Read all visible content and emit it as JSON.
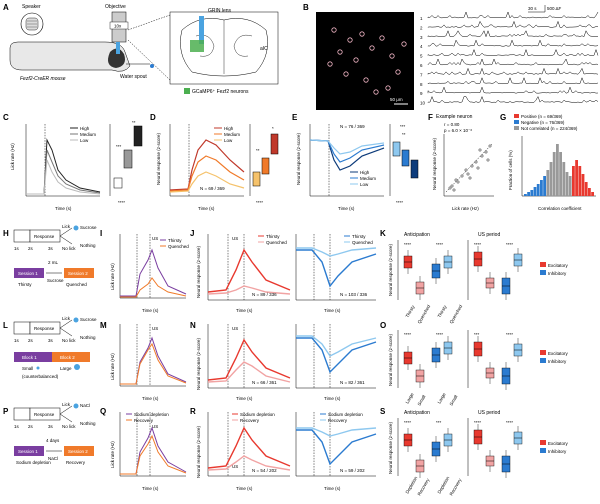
{
  "panels": {
    "A": {
      "letter": "A",
      "speaker": "Speaker",
      "objective": "Objective",
      "objective_mag": "10x",
      "mouse": "Fezf2-CreER mouse",
      "grin": "GRIN lens",
      "aic": "aIC",
      "spout": "Water spout",
      "legend": "GCaMP6⁺ Fezf2 neurons"
    },
    "B": {
      "letter": "B",
      "scale_time": "30 s",
      "scale_df": "500 ΔF",
      "scale_um": "50 μm",
      "trace_ids": [
        "1",
        "2",
        "3",
        "4",
        "5",
        "6",
        "7",
        "8",
        "9",
        "10"
      ]
    },
    "C": {
      "letter": "C",
      "ylabel": "Lick rate (Hz)",
      "xlabel": "Time (s)",
      "legend": [
        "High",
        "Medium",
        "Low"
      ],
      "xticks": [
        "-4",
        "0",
        "4",
        "8",
        "12"
      ],
      "yticks": [
        "0",
        "2",
        "4",
        "6",
        "8"
      ],
      "sig": [
        "**",
        "***",
        "****"
      ]
    },
    "D": {
      "letter": "D",
      "ylabel": "Neural response (z-score)",
      "xlabel": "Time (s)",
      "legend": [
        "High",
        "Medium",
        "Low"
      ],
      "xticks": [
        "-4",
        "0",
        "4",
        "8",
        "12"
      ],
      "yticks": [
        "0",
        "0.4",
        "0.8"
      ],
      "n": "N = 69 / 369",
      "sig": [
        "*",
        "**",
        "****"
      ]
    },
    "E": {
      "letter": "E",
      "ylabel": "Neural response (z-score)",
      "xlabel": "Time (s)",
      "legend": [
        "High",
        "Medium",
        "Low"
      ],
      "xticks": [
        "-4",
        "0",
        "4",
        "8",
        "12"
      ],
      "yticks": [
        "-0.4",
        "-0.2",
        "0",
        "0.2"
      ],
      "n": "N = 76 / 369",
      "sig": [
        "***",
        "**",
        "****"
      ]
    },
    "F": {
      "letter": "F",
      "title": "Example neuron",
      "r": "r = 0.80",
      "p": "p = 6.0 × 10⁻⁶",
      "ylabel": "Neural response (z-score)",
      "xlabel": "Lick rate (Hz)",
      "xticks": [
        "0",
        "2",
        "4",
        "6",
        "8"
      ]
    },
    "G": {
      "letter": "G",
      "legend": [
        "Positive (n = 69/369)",
        "Negative (n = 76/369)",
        "Not correlated (n = 224/369)"
      ],
      "ylabel": "Fraction of cells (%)",
      "xlabel": "Correlation coefficient",
      "xticks": [
        "-1",
        "0",
        "1"
      ],
      "yticks": [
        "0",
        "5",
        "10",
        "15"
      ]
    },
    "H": {
      "letter": "H",
      "response": "Response",
      "lick": "Lick",
      "no_lick": "No lick",
      "sucrose": "Sucrose",
      "nothing": "Nothing",
      "session1": "Session 1",
      "session1_sub": "Thirsty",
      "gap": "2 mL",
      "gap2": "Sucrose",
      "session2": "Session 2",
      "session2_sub": "Quenched",
      "times": [
        "1s",
        "2s",
        "3s"
      ]
    },
    "I": {
      "letter": "I",
      "ylabel": "Lick rate (Hz)",
      "xlabel": "Time (s)",
      "legend": [
        "Thirsty",
        "Quenched"
      ],
      "us": "US",
      "xticks": [
        "-4",
        "0",
        "4",
        "8",
        "12"
      ],
      "yticks": [
        "0",
        "4",
        "8"
      ]
    },
    "J": {
      "letter": "J",
      "ylabel": "Neural response (z-score)",
      "xlabel": "Time (s)",
      "legend1": [
        "Thirsty",
        "Quenched"
      ],
      "legend2": [
        "Thirsty",
        "Quenched"
      ],
      "us": "US",
      "n1": "N = 89 / 336",
      "n2": "N = 103 / 336",
      "xticks": [
        "-4",
        "0",
        "4",
        "8",
        "12"
      ]
    },
    "K": {
      "letter": "K",
      "h1": "Anticipation",
      "h2": "US period",
      "ylabel": "Neural response (z-score)",
      "legend": [
        "Excitatory",
        "Inhibitory"
      ],
      "cats": [
        "Thirsty",
        "Quenched",
        "Thirsty",
        "Quenched"
      ],
      "sig": [
        "****",
        "****",
        "****",
        "****"
      ]
    },
    "L": {
      "letter": "L",
      "response": "Response",
      "lick": "Lick",
      "no_lick": "No lick",
      "sucrose": "Sucrose",
      "nothing": "Nothing",
      "block1": "Block 1",
      "block2": "Block 2",
      "small": "Small",
      "large": "Large",
      "cb": "(counterbalanced)",
      "times": [
        "1s",
        "2s",
        "3s"
      ]
    },
    "M": {
      "letter": "M",
      "ylabel": "Lick rate (Hz)",
      "xlabel": "Time (s)",
      "us": "US",
      "xticks": [
        "-4",
        "0",
        "4",
        "8",
        "12"
      ],
      "yticks": [
        "0",
        "4",
        "8"
      ]
    },
    "N": {
      "letter": "N",
      "ylabel": "Neural response (z-score)",
      "xlabel": "Time (s)",
      "us": "US",
      "n1": "N = 66 / 361",
      "n2": "N = 82 / 361",
      "xticks": [
        "-4",
        "0",
        "4",
        "8",
        "12"
      ]
    },
    "O": {
      "letter": "O",
      "ylabel": "Neural response (z-score)",
      "legend": [
        "Excitatory",
        "Inhibitory"
      ],
      "cats": [
        "Large",
        "Small",
        "Large",
        "Small"
      ],
      "sig": [
        "****",
        "****",
        "***",
        "****"
      ]
    },
    "P": {
      "letter": "P",
      "response": "Response",
      "lick": "Lick",
      "no_lick": "No lick",
      "nacl": "NaCl",
      "nothing": "Nothing",
      "session1": "Session 1",
      "session1_sub": "Sodium depletion",
      "gap": "4 days",
      "gap2": "NaCl",
      "session2": "Session 2",
      "session2_sub": "Recovery",
      "times": [
        "1s",
        "2s",
        "3s"
      ]
    },
    "Q": {
      "letter": "Q",
      "ylabel": "Lick rate (Hz)",
      "xlabel": "Time (s)",
      "legend": [
        "Sodium depletion",
        "Recovery"
      ],
      "us": "US",
      "xticks": [
        "-4",
        "0",
        "4",
        "8",
        "12"
      ],
      "yticks": [
        "0",
        "4",
        "8"
      ]
    },
    "R": {
      "letter": "R",
      "ylabel": "Neural response (z-score)",
      "xlabel": "Time (s)",
      "legend1": [
        "Sodium depletion",
        "Recovery"
      ],
      "legend2": [
        "Sodium depletion",
        "Recovery"
      ],
      "us": "US",
      "n1": "N = 54 / 202",
      "n2": "N = 59 / 202",
      "xticks": [
        "-4",
        "0",
        "4",
        "8",
        "12"
      ]
    },
    "S": {
      "letter": "S",
      "h1": "Anticipation",
      "h2": "US period",
      "ylabel": "Neural response (z-score)",
      "legend": [
        "Excitatory",
        "Inhibitory"
      ],
      "cats": [
        "Depletion",
        "Recovery",
        "Depletion",
        "Recovery"
      ],
      "sig": [
        "****",
        "***",
        "****",
        "****"
      ]
    }
  },
  "colors": {
    "red": "#e8392f",
    "pink": "#f1a3a3",
    "blue": "#2b7bd0",
    "lightblue": "#8ec8ef",
    "purple": "#7a3ea0",
    "orange": "#f07a2a",
    "gray": "#888888",
    "darkgray": "#444444"
  }
}
